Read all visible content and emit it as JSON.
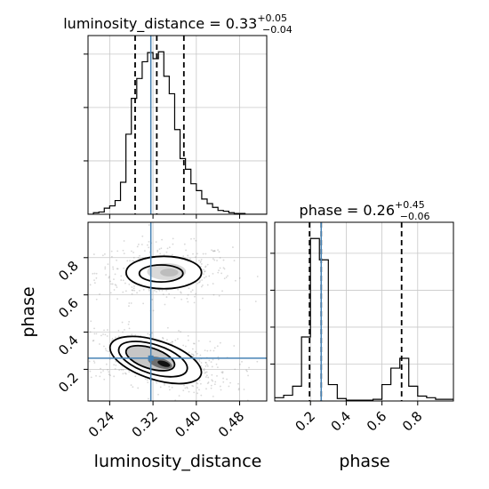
{
  "chart_data": [
    {
      "type": "histogram",
      "panel": "luminosity_distance marginal",
      "title_param": "luminosity_distance",
      "title_median": "0.33",
      "title_plus": "+0.05",
      "title_minus": "−0.04",
      "xlim": [
        0.2,
        0.53
      ],
      "bins": [
        0.2,
        0.21,
        0.22,
        0.23,
        0.24,
        0.25,
        0.26,
        0.27,
        0.28,
        0.29,
        0.3,
        0.31,
        0.32,
        0.33,
        0.34,
        0.35,
        0.36,
        0.37,
        0.38,
        0.39,
        0.4,
        0.41,
        0.42,
        0.43,
        0.44,
        0.45,
        0.46,
        0.47,
        0.48,
        0.49,
        0.5,
        0.51,
        0.52,
        0.53
      ],
      "counts": [
        0,
        2,
        3,
        8,
        11,
        18,
        42,
        105,
        152,
        178,
        200,
        212,
        204,
        213,
        181,
        158,
        111,
        73,
        59,
        40,
        31,
        20,
        14,
        9,
        5,
        4,
        2,
        1,
        1,
        0,
        0,
        0,
        0
      ],
      "quantiles": [
        0.287,
        0.327,
        0.377
      ],
      "truth": 0.316,
      "grid": true
    },
    {
      "type": "contour",
      "panel": "2D luminosity_distance vs phase",
      "x_param": "luminosity_distance",
      "y_param": "phase",
      "xlim": [
        0.2,
        0.53
      ],
      "ylim": [
        0.03,
        0.99
      ],
      "truth": {
        "x": 0.316,
        "y": 0.26
      },
      "xticks": [
        "0.24",
        "0.32",
        "0.40",
        "0.48"
      ],
      "yticks": [
        "0.2",
        "0.4",
        "0.6",
        "0.8"
      ],
      "xtick_values": [
        0.24,
        0.32,
        0.4,
        0.48
      ],
      "ytick_values": [
        0.2,
        0.4,
        0.6,
        0.8
      ],
      "xlabel": "luminosity_distance",
      "ylabel": "phase",
      "upper_mode": {
        "center": [
          0.34,
          0.72
        ],
        "spread": [
          0.048,
          0.06
        ]
      },
      "lower_mode": {
        "center": [
          0.325,
          0.25
        ],
        "spread": [
          0.055,
          0.065
        ]
      },
      "grid": true
    },
    {
      "type": "histogram",
      "panel": "phase marginal",
      "title_param": "phase",
      "title_median": "0.26",
      "title_plus": "+0.45",
      "title_minus": "−0.06",
      "xlim": [
        0.0,
        1.0
      ],
      "bins": [
        0.0,
        0.05,
        0.1,
        0.15,
        0.2,
        0.25,
        0.3,
        0.35,
        0.4,
        0.45,
        0.5,
        0.55,
        0.6,
        0.65,
        0.7,
        0.75,
        0.8,
        0.85,
        0.9,
        0.95,
        1.0
      ],
      "counts": [
        4,
        7,
        18,
        78,
        198,
        172,
        20,
        3,
        1,
        1,
        1,
        2,
        20,
        40,
        52,
        18,
        6,
        4,
        2,
        2
      ],
      "quantiles": [
        0.195,
        0.26,
        0.71
      ],
      "truth": 0.26,
      "xticks": [
        "0.2",
        "0.4",
        "0.6",
        "0.8"
      ],
      "xtick_values": [
        0.2,
        0.4,
        0.6,
        0.8
      ],
      "xlabel": "phase",
      "grid": true
    }
  ],
  "colors": {
    "truth": "#4682b4",
    "contour": "#000000",
    "grid": "#c8c8c8",
    "points": "#909090"
  }
}
